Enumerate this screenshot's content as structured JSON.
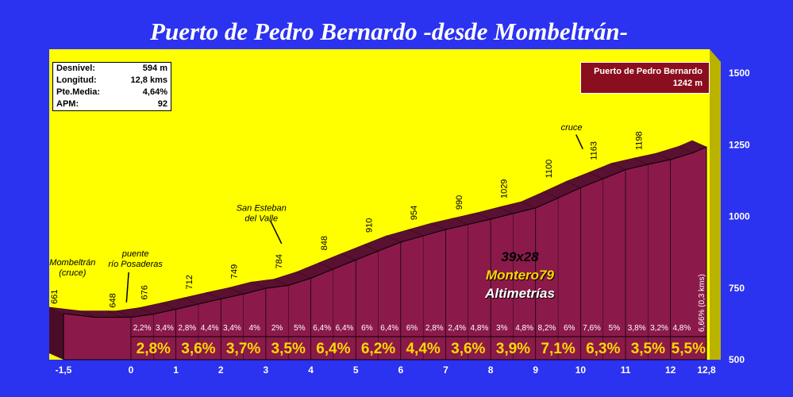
{
  "title": "Puerto de Pedro Bernardo -desde Mombeltrán-",
  "info": {
    "rows": [
      {
        "label": "Desnivel:",
        "value": "594 m"
      },
      {
        "label": "Longitud:",
        "value": "12,8 kms"
      },
      {
        "label": "Pte.Media:",
        "value": "4,64%"
      },
      {
        "label": "APM:",
        "value": "92"
      }
    ]
  },
  "summit": {
    "name": "Puerto de Pedro Bernardo",
    "altitude": "1242 m"
  },
  "credits": {
    "gear": "39x28",
    "author": "Montero79",
    "brand": "Altimetrías"
  },
  "colors": {
    "background": "#2b32f0",
    "plot": "#ffff00",
    "profile": "#8b1a4a",
    "grades": "#ffd700"
  },
  "chart_data": {
    "type": "area",
    "xlim": [
      -1.5,
      12.8
    ],
    "ylim": [
      500,
      1500
    ],
    "x_ticks": [
      "-1,5",
      "0",
      "1",
      "2",
      "3",
      "4",
      "5",
      "6",
      "7",
      "8",
      "9",
      "10",
      "11",
      "12",
      "12,8"
    ],
    "y_ticks": [
      "500",
      "750",
      "1000",
      "1250",
      "1500"
    ],
    "profile": {
      "x": [
        -1.5,
        -0.8,
        -0.2,
        0,
        0.5,
        1,
        1.5,
        2,
        2.5,
        3,
        3.5,
        4,
        4.5,
        5,
        5.5,
        6,
        6.5,
        7,
        7.5,
        8,
        8.5,
        9,
        9.5,
        10,
        10.5,
        11,
        11.5,
        12,
        12.5,
        12.8
      ],
      "y": [
        661,
        648,
        648,
        648,
        659,
        676,
        694,
        712,
        729,
        749,
        759,
        784,
        816,
        848,
        879,
        910,
        932,
        954,
        972,
        990,
        1010,
        1029,
        1064,
        1100,
        1131,
        1163,
        1181,
        1198,
        1222,
        1242
      ]
    },
    "altitude_labels": [
      {
        "x": -1.5,
        "y": 661,
        "text": "661"
      },
      {
        "x": -0.2,
        "y": 648,
        "text": "648"
      },
      {
        "x": 0.5,
        "y": 676,
        "text": "676"
      },
      {
        "x": 1.5,
        "y": 712,
        "text": "712"
      },
      {
        "x": 2.5,
        "y": 749,
        "text": "749"
      },
      {
        "x": 3.5,
        "y": 784,
        "text": "784"
      },
      {
        "x": 4.5,
        "y": 848,
        "text": "848"
      },
      {
        "x": 5.5,
        "y": 910,
        "text": "910"
      },
      {
        "x": 6.5,
        "y": 954,
        "text": "954"
      },
      {
        "x": 7.5,
        "y": 990,
        "text": "990"
      },
      {
        "x": 8.5,
        "y": 1029,
        "text": "1029"
      },
      {
        "x": 9.5,
        "y": 1100,
        "text": "1100"
      },
      {
        "x": 10.5,
        "y": 1163,
        "text": "1163"
      },
      {
        "x": 11.5,
        "y": 1198,
        "text": "1198"
      }
    ],
    "annotations": [
      {
        "text": [
          "Mombeltrán",
          "(cruce)"
        ],
        "x": -1.3,
        "y": 830
      },
      {
        "text": [
          "puente",
          "río Posaderas"
        ],
        "x": 0.1,
        "y": 860
      },
      {
        "text": [
          "San Esteban",
          "del Valle"
        ],
        "x": 2.9,
        "y": 1020
      },
      {
        "text": [
          "cruce"
        ],
        "x": 9.8,
        "y": 1300
      }
    ],
    "segment_grades": [
      "2,2%",
      "3,4%",
      "2,8%",
      "4,4%",
      "3,4%",
      "4%",
      "2%",
      "5%",
      "6,4%",
      "6,4%",
      "6%",
      "6,4%",
      "6%",
      "2,8%",
      "2,4%",
      "4,8%",
      "3%",
      "4,8%",
      "8,2%",
      "6%",
      "7,6%",
      "5%",
      "3,8%",
      "3,2%",
      "4,8%"
    ],
    "km_grades": [
      "2,8%",
      "3,6%",
      "3,7%",
      "3,5%",
      "6,4%",
      "6,2%",
      "4,4%",
      "3,6%",
      "3,9%",
      "7,1%",
      "6,3%",
      "3,5%",
      "5,5%"
    ],
    "final_grade": "6,66% (0,3 kms)"
  }
}
